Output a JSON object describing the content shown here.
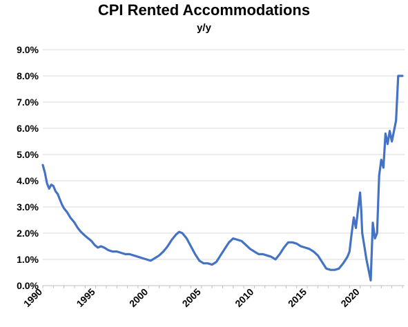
{
  "chart_data": {
    "type": "line",
    "title": "CPI Rented Accommodations",
    "subtitle": "y/y",
    "xlabel": "",
    "ylabel": "",
    "xlim": [
      1990,
      2024.2
    ],
    "ylim": [
      0,
      9
    ],
    "grid": true,
    "y_tick_labels": [
      "0.0%",
      "1.0%",
      "2.0%",
      "3.0%",
      "4.0%",
      "5.0%",
      "6.0%",
      "7.0%",
      "8.0%",
      "9.0%"
    ],
    "y_tick_values": [
      0,
      1,
      2,
      3,
      4,
      5,
      6,
      7,
      8,
      9
    ],
    "x_tick_labels": [
      "1990",
      "1995",
      "2000",
      "2005",
      "2010",
      "2015",
      "2020"
    ],
    "x_tick_values": [
      1990,
      1995,
      2000,
      2005,
      2010,
      2015,
      2020
    ],
    "colors": {
      "line": "#4472c4",
      "grid": "#d9d9d9"
    },
    "series": [
      {
        "x": [
          1990.0,
          1990.2,
          1990.4,
          1990.6,
          1990.8,
          1991.0,
          1991.2,
          1991.4,
          1991.6,
          1991.8,
          1992.0,
          1992.3,
          1992.6,
          1993.0,
          1993.3,
          1993.6,
          1994.0,
          1994.3,
          1994.6,
          1994.9,
          1995.2,
          1995.5,
          1995.8,
          1996.2,
          1996.6,
          1997.0,
          1997.4,
          1997.8,
          1998.2,
          1998.6,
          1999.0,
          1999.4,
          1999.8,
          2000.2,
          2000.6,
          2001.0,
          2001.4,
          2001.8,
          2002.2,
          2002.6,
          2002.9,
          2003.2,
          2003.6,
          2004.0,
          2004.4,
          2004.8,
          2005.2,
          2005.6,
          2006.0,
          2006.4,
          2006.8,
          2007.2,
          2007.6,
          2008.0,
          2008.4,
          2008.8,
          2009.2,
          2009.6,
          2010.0,
          2010.4,
          2010.8,
          2011.2,
          2011.6,
          2012.0,
          2012.4,
          2012.8,
          2013.2,
          2013.6,
          2014.0,
          2014.4,
          2014.8,
          2015.2,
          2015.6,
          2016.0,
          2016.4,
          2016.8,
          2017.2,
          2017.6,
          2018.0,
          2018.4,
          2018.8,
          2019.0,
          2019.2,
          2019.4,
          2019.6,
          2019.8,
          2020.0,
          2020.1,
          2020.2,
          2020.4,
          2020.6,
          2020.8,
          2021.0,
          2021.2,
          2021.4,
          2021.6,
          2021.8,
          2022.0,
          2022.2,
          2022.4,
          2022.6,
          2022.8,
          2023.0,
          2023.2,
          2023.4,
          2023.6,
          2023.8,
          2024.0
        ],
        "y": [
          4.6,
          4.3,
          3.9,
          3.7,
          3.85,
          3.8,
          3.6,
          3.5,
          3.3,
          3.1,
          2.95,
          2.8,
          2.6,
          2.4,
          2.2,
          2.05,
          1.9,
          1.8,
          1.7,
          1.55,
          1.45,
          1.5,
          1.45,
          1.35,
          1.3,
          1.3,
          1.25,
          1.2,
          1.2,
          1.15,
          1.1,
          1.05,
          1.0,
          0.95,
          1.05,
          1.15,
          1.3,
          1.5,
          1.75,
          1.95,
          2.05,
          2.0,
          1.8,
          1.5,
          1.2,
          0.95,
          0.85,
          0.85,
          0.8,
          0.9,
          1.15,
          1.4,
          1.65,
          1.8,
          1.75,
          1.7,
          1.55,
          1.4,
          1.3,
          1.2,
          1.2,
          1.15,
          1.1,
          1.0,
          1.2,
          1.45,
          1.65,
          1.65,
          1.6,
          1.5,
          1.45,
          1.4,
          1.3,
          1.15,
          0.9,
          0.65,
          0.6,
          0.6,
          0.65,
          0.85,
          1.1,
          1.3,
          2.0,
          2.6,
          2.2,
          2.9,
          3.55,
          2.9,
          2.0,
          1.5,
          1.0,
          0.6,
          0.2,
          2.4,
          1.8,
          2.0,
          4.2,
          4.8,
          4.5,
          5.8,
          5.4,
          5.9,
          5.5,
          5.9,
          6.3,
          8.0,
          8.0,
          8.0
        ]
      }
    ]
  }
}
